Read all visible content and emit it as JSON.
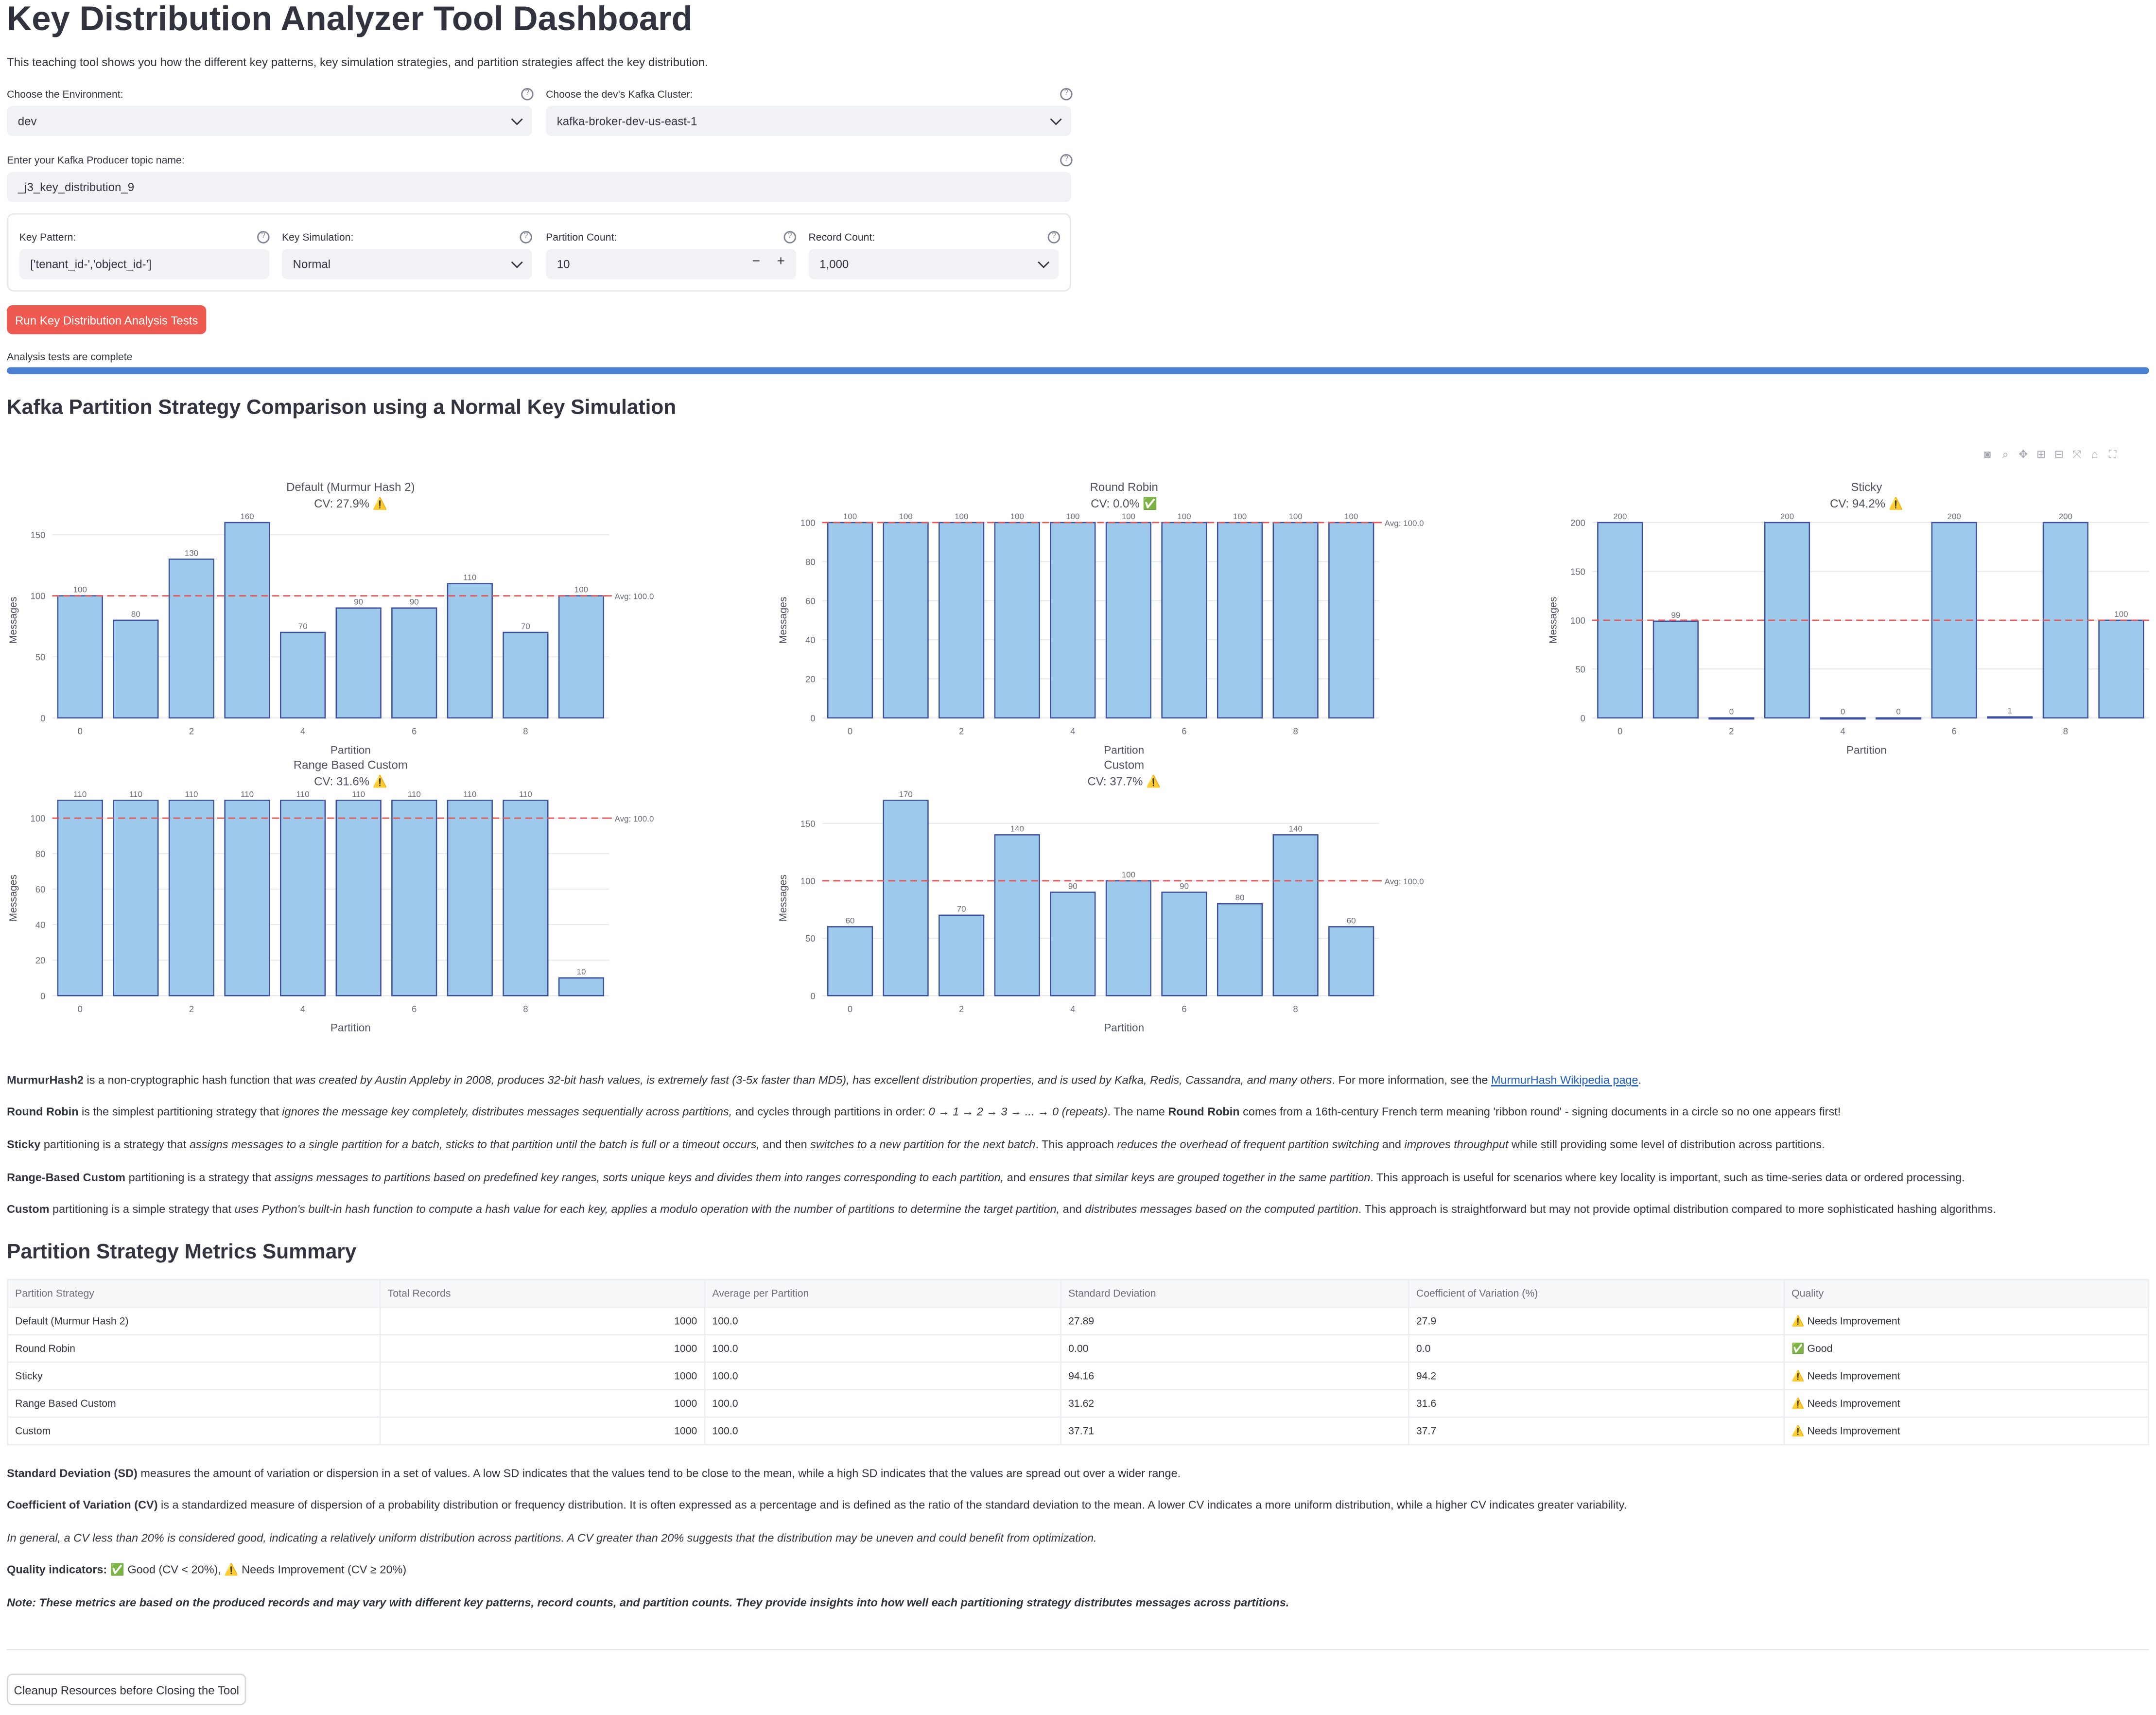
{
  "title": "Key Distribution Analyzer Tool Dashboard",
  "intro": "This teaching tool shows you how the different key patterns, key simulation strategies, and partition strategies affect the key distribution.",
  "environment": {
    "label": "Choose the Environment:",
    "value": "dev"
  },
  "cluster": {
    "label": "Choose the dev's Kafka Cluster:",
    "value": "kafka-broker-dev-us-east-1"
  },
  "topic": {
    "label": "Enter your Kafka Producer topic name:",
    "value": "_j3_key_distribution_9"
  },
  "key_pattern": {
    "label": "Key Pattern:",
    "value": "['tenant_id-','object_id-']"
  },
  "key_simulation": {
    "label": "Key Simulation:",
    "value": "Normal"
  },
  "partition_count": {
    "label": "Partition Count:",
    "value": "10",
    "minus": "−",
    "plus": "+"
  },
  "record_count": {
    "label": "Record Count:",
    "value": "1,000"
  },
  "help_icon": "?",
  "run_button": "Run Key Distribution Analysis Tests",
  "status": "Analysis tests are complete",
  "progress": 1.0,
  "chart_section_title": "Kafka Partition Strategy Comparison using a Normal Key Simulation",
  "chart_data": [
    {
      "type": "bar",
      "title": "Default (Murmur Hash 2)",
      "subtitle": "CV: 27.9% ⚠️",
      "xlabel": "Partition",
      "ylabel": "Messages",
      "categories": [
        0,
        1,
        2,
        3,
        4,
        5,
        6,
        7,
        8,
        9
      ],
      "values": [
        100,
        80,
        130,
        160,
        70,
        90,
        90,
        110,
        70,
        100
      ],
      "average": 100.0,
      "avg_label": "Avg: 100.0",
      "ylim": [
        0,
        160
      ],
      "yticks": [
        0,
        50,
        100,
        150
      ],
      "xticks": [
        0,
        2,
        4,
        6,
        8
      ]
    },
    {
      "type": "bar",
      "title": "Round Robin",
      "subtitle": "CV: 0.0% ✅",
      "xlabel": "Partition",
      "ylabel": "Messages",
      "categories": [
        0,
        1,
        2,
        3,
        4,
        5,
        6,
        7,
        8,
        9
      ],
      "values": [
        100,
        100,
        100,
        100,
        100,
        100,
        100,
        100,
        100,
        100
      ],
      "average": 100.0,
      "avg_label": "Avg: 100.0",
      "ylim": [
        0,
        100
      ],
      "yticks": [
        0,
        20,
        40,
        60,
        80,
        100
      ],
      "xticks": [
        0,
        2,
        4,
        6,
        8
      ]
    },
    {
      "type": "bar",
      "title": "Sticky",
      "subtitle": "CV: 94.2% ⚠️",
      "xlabel": "Partition",
      "ylabel": "Messages",
      "categories": [
        0,
        1,
        2,
        3,
        4,
        5,
        6,
        7,
        8,
        9
      ],
      "values": [
        200,
        99,
        0,
        200,
        0,
        0,
        200,
        1,
        200,
        100
      ],
      "average": 100.0,
      "avg_label": "",
      "ylim": [
        0,
        200
      ],
      "yticks": [
        0,
        50,
        100,
        150,
        200
      ],
      "xticks": [
        0,
        2,
        4,
        6,
        8
      ]
    },
    {
      "type": "bar",
      "title": "Range Based Custom",
      "subtitle": "CV: 31.6% ⚠️",
      "xlabel": "Partition",
      "ylabel": "Messages",
      "categories": [
        0,
        1,
        2,
        3,
        4,
        5,
        6,
        7,
        8,
        9
      ],
      "values": [
        110,
        110,
        110,
        110,
        110,
        110,
        110,
        110,
        110,
        10
      ],
      "average": 100.0,
      "avg_label": "Avg: 100.0",
      "ylim": [
        0,
        110
      ],
      "yticks": [
        0,
        20,
        40,
        60,
        80,
        100
      ],
      "xticks": [
        0,
        2,
        4,
        6,
        8
      ]
    },
    {
      "type": "bar",
      "title": "Custom",
      "subtitle": "CV: 37.7% ⚠️",
      "xlabel": "Partition",
      "ylabel": "Messages",
      "categories": [
        0,
        1,
        2,
        3,
        4,
        5,
        6,
        7,
        8,
        9
      ],
      "values": [
        60,
        170,
        70,
        140,
        90,
        100,
        90,
        80,
        140,
        60
      ],
      "average": 100.0,
      "avg_label": "Avg: 100.0",
      "ylim": [
        0,
        170
      ],
      "yticks": [
        0,
        50,
        100,
        150
      ],
      "xticks": [
        0,
        2,
        4,
        6,
        8
      ]
    }
  ],
  "descriptions": {
    "murmur": {
      "b": "MurmurHash2",
      "t1": " is a non-cryptographic hash function that ",
      "i1": "was created by Austin Appleby in 2008, produces 32-bit hash values, is extremely fast (3-5x faster than MD5), has excellent distribution properties, and is used by Kafka, Redis, Cassandra, and many others",
      "t2": ". For more information, see the ",
      "link": "MurmurHash Wikipedia page",
      "t3": "."
    },
    "roundrobin": {
      "b": "Round Robin",
      "t1": " is the simplest partitioning strategy that ",
      "i1": "ignores the message key completely, distributes messages sequentially across partitions,",
      "t2": " and cycles through partitions in order: ",
      "i2": "0 → 1 → 2 → 3 → ... → 0 (repeats)",
      "t3": ". The name ",
      "b2": "Round Robin",
      "t4": " comes from a 16th-century French term meaning 'ribbon round' - signing documents in a circle so no one appears first!"
    },
    "sticky": {
      "b": "Sticky",
      "t1": " partitioning is a strategy that ",
      "i1": "assigns messages to a single partition for a batch, sticks to that partition until the batch is full or a timeout occurs,",
      "t2": " and then ",
      "i2": "switches to a new partition for the next batch",
      "t3": ". This approach ",
      "i3": "reduces the overhead of frequent partition switching",
      "t4": " and ",
      "i4": "improves throughput",
      "t5": " while still providing some level of distribution across partitions."
    },
    "range": {
      "b": "Range-Based Custom",
      "t1": " partitioning is a strategy that ",
      "i1": "assigns messages to partitions based on predefined key ranges, sorts unique keys and divides them into ranges corresponding to each partition,",
      "t2": " and ",
      "i2": "ensures that similar keys are grouped together in the same partition",
      "t3": ". This approach is useful for scenarios where key locality is important, such as time-series data or ordered processing."
    },
    "custom": {
      "b": "Custom",
      "t1": " partitioning is a simple strategy that ",
      "i1": "uses Python's built-in hash function to compute a hash value for each key, applies a modulo operation with the number of partitions to determine the target partition,",
      "t2": " and ",
      "i2": "distributes messages based on the computed partition",
      "t3": ". This approach is straightforward but may not provide optimal distribution compared to more sophisticated hashing algorithms."
    }
  },
  "metrics_title": "Partition Strategy Metrics Summary",
  "metrics_table": {
    "headers": [
      "Partition Strategy",
      "Total Records",
      "Average per Partition",
      "Standard Deviation",
      "Coefficient of Variation (%)",
      "Quality"
    ],
    "rows": [
      [
        "Default (Murmur Hash 2)",
        "1000",
        "100.0",
        "27.89",
        "27.9",
        "⚠️ Needs Improvement"
      ],
      [
        "Round Robin",
        "1000",
        "100.0",
        "0.00",
        "0.0",
        "✅ Good"
      ],
      [
        "Sticky",
        "1000",
        "100.0",
        "94.16",
        "94.2",
        "⚠️ Needs Improvement"
      ],
      [
        "Range Based Custom",
        "1000",
        "100.0",
        "31.62",
        "31.6",
        "⚠️ Needs Improvement"
      ],
      [
        "Custom",
        "1000",
        "100.0",
        "37.71",
        "37.7",
        "⚠️ Needs Improvement"
      ]
    ]
  },
  "notes": {
    "sd": {
      "b": "Standard Deviation (SD)",
      "t": " measures the amount of variation or dispersion in a set of values. A low SD indicates that the values tend to be close to the mean, while a high SD indicates that the values are spread out over a wider range."
    },
    "cv": {
      "b": "Coefficient of Variation (CV)",
      "t": " is a standardized measure of dispersion of a probability distribution or frequency distribution. It is often expressed as a percentage and is defined as the ratio of the standard deviation to the mean. A lower CV indicates a more uniform distribution, while a higher CV indicates greater variability."
    },
    "general": "In general, a CV less than 20% is considered good, indicating a relatively uniform distribution across partitions. A CV greater than 20% suggests that the distribution may be uneven and could benefit from optimization.",
    "quality": {
      "b": "Quality indicators:",
      "t": " ✅ Good (CV < 20%), ⚠️ Needs Improvement (CV ≥ 20%)"
    },
    "note": "Note: These metrics are based on the produced records and may vary with different key patterns, record counts, and partition counts. They provide insights into how well each partitioning strategy distributes messages across partitions."
  },
  "cleanup_button": "Cleanup Resources before Closing the Tool",
  "colors": {
    "bar_fill": "#9dcaea",
    "bar_stroke": "#3d4f9f",
    "avg_line": "#e45756",
    "primary": "#ef5a50",
    "progress": "#4b7fd0"
  },
  "toolbar_icons": [
    "camera-icon",
    "zoom-icon",
    "pan-icon",
    "zoom-in-icon",
    "zoom-out-icon",
    "autoscale-icon",
    "home-icon",
    "fullscreen-icon"
  ]
}
